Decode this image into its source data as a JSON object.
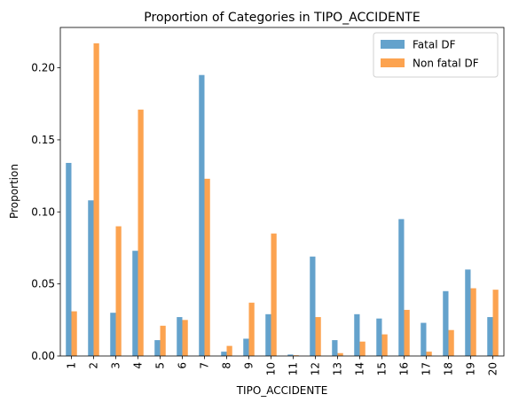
{
  "chart_data": {
    "type": "bar",
    "title": "Proportion of Categories in TIPO_ACCIDENTE",
    "xlabel": "TIPO_ACCIDENTE",
    "ylabel": "Proportion",
    "categories": [
      "1",
      "2",
      "3",
      "4",
      "5",
      "6",
      "7",
      "8",
      "9",
      "10",
      "11",
      "12",
      "13",
      "14",
      "15",
      "16",
      "17",
      "18",
      "19",
      "20"
    ],
    "series": [
      {
        "name": "Fatal DF",
        "color": "#64a2cc",
        "values": [
          0.134,
          0.108,
          0.03,
          0.073,
          0.011,
          0.027,
          0.195,
          0.003,
          0.012,
          0.029,
          0.001,
          0.069,
          0.011,
          0.029,
          0.026,
          0.095,
          0.023,
          0.045,
          0.06,
          0.027
        ]
      },
      {
        "name": "Non fatal DF",
        "color": "#fca350",
        "values": [
          0.031,
          0.217,
          0.09,
          0.171,
          0.021,
          0.025,
          0.123,
          0.007,
          0.037,
          0.085,
          0.0005,
          0.027,
          0.002,
          0.01,
          0.015,
          0.032,
          0.003,
          0.018,
          0.047,
          0.046
        ]
      }
    ],
    "ylim": [
      0,
      0.228
    ],
    "yticks": [
      0.0,
      0.05,
      0.1,
      0.15,
      0.2
    ],
    "ytick_labels": [
      "0.00",
      "0.05",
      "0.10",
      "0.15",
      "0.20"
    ],
    "grid": false,
    "legend_position": "upper right"
  }
}
